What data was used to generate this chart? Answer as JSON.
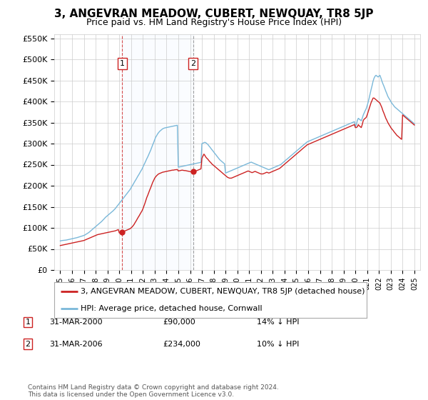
{
  "title": "3, ANGEVRAN MEADOW, CUBERT, NEWQUAY, TR8 5JP",
  "subtitle": "Price paid vs. HM Land Registry's House Price Index (HPI)",
  "legend_label_red": "3, ANGEVRAN MEADOW, CUBERT, NEWQUAY, TR8 5JP (detached house)",
  "legend_label_blue": "HPI: Average price, detached house, Cornwall",
  "transactions": [
    {
      "label": "1",
      "date": "31-MAR-2000",
      "price": "£90,000",
      "pct": "14% ↓ HPI",
      "year": 2000.25,
      "value": 90000
    },
    {
      "label": "2",
      "date": "31-MAR-2006",
      "price": "£234,000",
      "pct": "10% ↓ HPI",
      "year": 2006.25,
      "value": 234000
    }
  ],
  "footnote": "Contains HM Land Registry data © Crown copyright and database right 2024.\nThis data is licensed under the Open Government Licence v3.0.",
  "hpi_color": "#7ab8d9",
  "price_color": "#cc2222",
  "fill_color": "#ddeeff",
  "ylim": [
    0,
    560000
  ],
  "yticks": [
    0,
    50000,
    100000,
    150000,
    200000,
    250000,
    300000,
    350000,
    400000,
    450000,
    500000,
    550000
  ],
  "ytick_labels": [
    "£0",
    "£50K",
    "£100K",
    "£150K",
    "£200K",
    "£250K",
    "£300K",
    "£350K",
    "£400K",
    "£450K",
    "£500K",
    "£550K"
  ],
  "xlim": [
    1994.5,
    2025.5
  ],
  "hpi_x": [
    1995.0,
    1995.08,
    1995.17,
    1995.25,
    1995.33,
    1995.42,
    1995.5,
    1995.58,
    1995.67,
    1995.75,
    1995.83,
    1995.92,
    1996.0,
    1996.08,
    1996.17,
    1996.25,
    1996.33,
    1996.42,
    1996.5,
    1996.58,
    1996.67,
    1996.75,
    1996.83,
    1996.92,
    1997.0,
    1997.08,
    1997.17,
    1997.25,
    1997.33,
    1997.42,
    1997.5,
    1997.58,
    1997.67,
    1997.75,
    1997.83,
    1997.92,
    1998.0,
    1998.08,
    1998.17,
    1998.25,
    1998.33,
    1998.42,
    1998.5,
    1998.58,
    1998.67,
    1998.75,
    1998.83,
    1998.92,
    1999.0,
    1999.08,
    1999.17,
    1999.25,
    1999.33,
    1999.42,
    1999.5,
    1999.58,
    1999.67,
    1999.75,
    1999.83,
    1999.92,
    2000.0,
    2000.08,
    2000.17,
    2000.25,
    2000.33,
    2000.42,
    2000.5,
    2000.58,
    2000.67,
    2000.75,
    2000.83,
    2000.92,
    2001.0,
    2001.08,
    2001.17,
    2001.25,
    2001.33,
    2001.42,
    2001.5,
    2001.58,
    2001.67,
    2001.75,
    2001.83,
    2001.92,
    2002.0,
    2002.08,
    2002.17,
    2002.25,
    2002.33,
    2002.42,
    2002.5,
    2002.58,
    2002.67,
    2002.75,
    2002.83,
    2002.92,
    2003.0,
    2003.08,
    2003.17,
    2003.25,
    2003.33,
    2003.42,
    2003.5,
    2003.58,
    2003.67,
    2003.75,
    2003.83,
    2003.92,
    2004.0,
    2004.08,
    2004.17,
    2004.25,
    2004.33,
    2004.42,
    2004.5,
    2004.58,
    2004.67,
    2004.75,
    2004.83,
    2004.92,
    2005.0,
    2005.08,
    2005.17,
    2005.25,
    2005.33,
    2005.42,
    2005.5,
    2005.58,
    2005.67,
    2005.75,
    2005.83,
    2005.92,
    2006.0,
    2006.08,
    2006.17,
    2006.25,
    2006.33,
    2006.42,
    2006.5,
    2006.58,
    2006.67,
    2006.75,
    2006.83,
    2006.92,
    2007.0,
    2007.08,
    2007.17,
    2007.25,
    2007.33,
    2007.42,
    2007.5,
    2007.58,
    2007.67,
    2007.75,
    2007.83,
    2007.92,
    2008.0,
    2008.08,
    2008.17,
    2008.25,
    2008.33,
    2008.42,
    2008.5,
    2008.58,
    2008.67,
    2008.75,
    2008.83,
    2008.92,
    2009.0,
    2009.08,
    2009.17,
    2009.25,
    2009.33,
    2009.42,
    2009.5,
    2009.58,
    2009.67,
    2009.75,
    2009.83,
    2009.92,
    2010.0,
    2010.08,
    2010.17,
    2010.25,
    2010.33,
    2010.42,
    2010.5,
    2010.58,
    2010.67,
    2010.75,
    2010.83,
    2010.92,
    2011.0,
    2011.08,
    2011.17,
    2011.25,
    2011.33,
    2011.42,
    2011.5,
    2011.58,
    2011.67,
    2011.75,
    2011.83,
    2011.92,
    2012.0,
    2012.08,
    2012.17,
    2012.25,
    2012.33,
    2012.42,
    2012.5,
    2012.58,
    2012.67,
    2012.75,
    2012.83,
    2012.92,
    2013.0,
    2013.08,
    2013.17,
    2013.25,
    2013.33,
    2013.42,
    2013.5,
    2013.58,
    2013.67,
    2013.75,
    2013.83,
    2013.92,
    2014.0,
    2014.08,
    2014.17,
    2014.25,
    2014.33,
    2014.42,
    2014.5,
    2014.58,
    2014.67,
    2014.75,
    2014.83,
    2014.92,
    2015.0,
    2015.08,
    2015.17,
    2015.25,
    2015.33,
    2015.42,
    2015.5,
    2015.58,
    2015.67,
    2015.75,
    2015.83,
    2015.92,
    2016.0,
    2016.08,
    2016.17,
    2016.25,
    2016.33,
    2016.42,
    2016.5,
    2016.58,
    2016.67,
    2016.75,
    2016.83,
    2016.92,
    2017.0,
    2017.08,
    2017.17,
    2017.25,
    2017.33,
    2017.42,
    2017.5,
    2017.58,
    2017.67,
    2017.75,
    2017.83,
    2017.92,
    2018.0,
    2018.08,
    2018.17,
    2018.25,
    2018.33,
    2018.42,
    2018.5,
    2018.58,
    2018.67,
    2018.75,
    2018.83,
    2018.92,
    2019.0,
    2019.08,
    2019.17,
    2019.25,
    2019.33,
    2019.42,
    2019.5,
    2019.58,
    2019.67,
    2019.75,
    2019.83,
    2019.92,
    2020.0,
    2020.08,
    2020.17,
    2020.25,
    2020.33,
    2020.42,
    2020.5,
    2020.58,
    2020.67,
    2020.75,
    2020.83,
    2020.92,
    2021.0,
    2021.08,
    2021.17,
    2021.25,
    2021.33,
    2021.42,
    2021.5,
    2021.58,
    2021.67,
    2021.75,
    2021.83,
    2021.92,
    2022.0,
    2022.08,
    2022.17,
    2022.25,
    2022.33,
    2022.42,
    2022.5,
    2022.58,
    2022.67,
    2022.75,
    2022.83,
    2022.92,
    2023.0,
    2023.08,
    2023.17,
    2023.25,
    2023.33,
    2023.42,
    2023.5,
    2023.58,
    2023.67,
    2023.75,
    2023.83,
    2023.92,
    2024.0,
    2024.08,
    2024.17,
    2024.25,
    2024.33,
    2024.42,
    2024.5,
    2024.58,
    2024.67,
    2024.75,
    2024.83,
    2024.92,
    2025.0
  ],
  "hpi_y": [
    69000,
    69500,
    70000,
    70200,
    70500,
    70800,
    71000,
    71500,
    72000,
    72500,
    73000,
    73500,
    74000,
    74500,
    75000,
    75500,
    76000,
    76800,
    77500,
    78200,
    79000,
    79800,
    80500,
    81000,
    82000,
    83000,
    84500,
    86000,
    87500,
    89000,
    91000,
    93000,
    95000,
    97000,
    99000,
    101000,
    103000,
    105000,
    107000,
    109000,
    111000,
    113000,
    115000,
    117500,
    120000,
    122500,
    125000,
    127000,
    129000,
    131000,
    133000,
    135000,
    137000,
    139000,
    141000,
    143500,
    146000,
    149000,
    152000,
    155000,
    158000,
    161000,
    164000,
    167000,
    170000,
    173000,
    176000,
    179000,
    182000,
    185000,
    188000,
    191000,
    195000,
    199000,
    203000,
    207000,
    211000,
    215000,
    219000,
    223000,
    227000,
    231000,
    235000,
    239000,
    244000,
    249000,
    254000,
    259000,
    264000,
    269000,
    274000,
    279000,
    285000,
    291000,
    297000,
    303000,
    309000,
    315000,
    319000,
    323000,
    326000,
    329000,
    331000,
    333000,
    335000,
    336000,
    337000,
    337500,
    338000,
    338500,
    339000,
    339500,
    340000,
    340500,
    341000,
    341500,
    342000,
    342500,
    343000,
    343500,
    244000,
    244500,
    245000,
    245500,
    246000,
    246500,
    247000,
    247500,
    248000,
    248500,
    249000,
    249500,
    250000,
    250500,
    251000,
    251500,
    252000,
    252500,
    253000,
    253500,
    254000,
    254500,
    255000,
    255500,
    300000,
    301000,
    302000,
    303000,
    302000,
    300000,
    298000,
    295000,
    292000,
    289000,
    286000,
    283000,
    280000,
    277000,
    274000,
    271000,
    268000,
    265000,
    262000,
    260000,
    258000,
    256000,
    254000,
    252000,
    230000,
    231000,
    232000,
    233000,
    234000,
    235000,
    236000,
    237000,
    238000,
    239000,
    240000,
    241000,
    242000,
    243000,
    244000,
    245000,
    246000,
    247000,
    248000,
    249000,
    250000,
    251000,
    252000,
    253000,
    254000,
    255000,
    256000,
    255000,
    254000,
    253000,
    252000,
    251000,
    250000,
    249000,
    248000,
    247000,
    246000,
    245000,
    244000,
    243000,
    242000,
    241000,
    240000,
    239000,
    238000,
    239000,
    240000,
    241000,
    242000,
    243000,
    244000,
    245000,
    246000,
    247000,
    248000,
    249000,
    250000,
    252000,
    254000,
    256000,
    258000,
    260000,
    262000,
    264000,
    266000,
    268000,
    270000,
    272000,
    274000,
    276000,
    278000,
    280000,
    282000,
    284000,
    286000,
    288000,
    290000,
    292000,
    294000,
    296000,
    298000,
    300000,
    302000,
    304000,
    305000,
    306000,
    307000,
    308000,
    309000,
    310000,
    311000,
    312000,
    313000,
    314000,
    315000,
    316000,
    317000,
    318000,
    319000,
    320000,
    321000,
    322000,
    323000,
    324000,
    325000,
    326000,
    327000,
    328000,
    329000,
    330000,
    331000,
    332000,
    333000,
    334000,
    335000,
    336000,
    337000,
    338000,
    339000,
    340000,
    341000,
    342000,
    343000,
    344000,
    345000,
    346000,
    347000,
    348000,
    349000,
    350000,
    351000,
    352000,
    340000,
    345000,
    355000,
    360000,
    358000,
    356000,
    354000,
    360000,
    368000,
    373000,
    378000,
    383000,
    390000,
    398000,
    408000,
    418000,
    428000,
    438000,
    448000,
    455000,
    460000,
    462000,
    460000,
    458000,
    460000,
    462000,
    455000,
    448000,
    442000,
    436000,
    430000,
    424000,
    418000,
    412000,
    408000,
    404000,
    400000,
    396000,
    393000,
    390000,
    387000,
    385000,
    383000,
    381000,
    379000,
    377000,
    375000,
    373000,
    371000,
    369000,
    367000,
    365000,
    363000,
    361000,
    359000,
    357000,
    355000,
    353000,
    351000,
    349000,
    347000
  ],
  "price_x": [
    1995.0,
    1995.08,
    1995.17,
    1995.25,
    1995.33,
    1995.42,
    1995.5,
    1995.58,
    1995.67,
    1995.75,
    1995.83,
    1995.92,
    1996.0,
    1996.08,
    1996.17,
    1996.25,
    1996.33,
    1996.42,
    1996.5,
    1996.58,
    1996.67,
    1996.75,
    1996.83,
    1996.92,
    1997.0,
    1997.08,
    1997.17,
    1997.25,
    1997.33,
    1997.42,
    1997.5,
    1997.58,
    1997.67,
    1997.75,
    1997.83,
    1997.92,
    1998.0,
    1998.08,
    1998.17,
    1998.25,
    1998.33,
    1998.42,
    1998.5,
    1998.58,
    1998.67,
    1998.75,
    1998.83,
    1998.92,
    1999.0,
    1999.08,
    1999.17,
    1999.25,
    1999.33,
    1999.42,
    1999.5,
    1999.58,
    1999.67,
    1999.75,
    1999.83,
    1999.92,
    2000.0,
    2000.08,
    2000.17,
    2000.25,
    2000.33,
    2000.42,
    2000.5,
    2000.58,
    2000.67,
    2000.75,
    2000.83,
    2000.92,
    2001.0,
    2001.08,
    2001.17,
    2001.25,
    2001.33,
    2001.42,
    2001.5,
    2001.58,
    2001.67,
    2001.75,
    2001.83,
    2001.92,
    2002.0,
    2002.08,
    2002.17,
    2002.25,
    2002.33,
    2002.42,
    2002.5,
    2002.58,
    2002.67,
    2002.75,
    2002.83,
    2002.92,
    2003.0,
    2003.08,
    2003.17,
    2003.25,
    2003.33,
    2003.42,
    2003.5,
    2003.58,
    2003.67,
    2003.75,
    2003.83,
    2003.92,
    2004.0,
    2004.08,
    2004.17,
    2004.25,
    2004.33,
    2004.42,
    2004.5,
    2004.58,
    2004.67,
    2004.75,
    2004.83,
    2004.92,
    2005.0,
    2005.08,
    2005.17,
    2005.25,
    2005.33,
    2005.42,
    2005.5,
    2005.58,
    2005.67,
    2005.75,
    2005.83,
    2005.92,
    2006.0,
    2006.08,
    2006.17,
    2006.25,
    2006.33,
    2006.42,
    2006.5,
    2006.58,
    2006.67,
    2006.75,
    2006.83,
    2006.92,
    2007.0,
    2007.08,
    2007.17,
    2007.25,
    2007.33,
    2007.42,
    2007.5,
    2007.58,
    2007.67,
    2007.75,
    2007.83,
    2007.92,
    2008.0,
    2008.08,
    2008.17,
    2008.25,
    2008.33,
    2008.42,
    2008.5,
    2008.58,
    2008.67,
    2008.75,
    2008.83,
    2008.92,
    2009.0,
    2009.08,
    2009.17,
    2009.25,
    2009.33,
    2009.42,
    2009.5,
    2009.58,
    2009.67,
    2009.75,
    2009.83,
    2009.92,
    2010.0,
    2010.08,
    2010.17,
    2010.25,
    2010.33,
    2010.42,
    2010.5,
    2010.58,
    2010.67,
    2010.75,
    2010.83,
    2010.92,
    2011.0,
    2011.08,
    2011.17,
    2011.25,
    2011.33,
    2011.42,
    2011.5,
    2011.58,
    2011.67,
    2011.75,
    2011.83,
    2011.92,
    2012.0,
    2012.08,
    2012.17,
    2012.25,
    2012.33,
    2012.42,
    2012.5,
    2012.58,
    2012.67,
    2012.75,
    2012.83,
    2012.92,
    2013.0,
    2013.08,
    2013.17,
    2013.25,
    2013.33,
    2013.42,
    2013.5,
    2013.58,
    2013.67,
    2013.75,
    2013.83,
    2013.92,
    2014.0,
    2014.08,
    2014.17,
    2014.25,
    2014.33,
    2014.42,
    2014.5,
    2014.58,
    2014.67,
    2014.75,
    2014.83,
    2014.92,
    2015.0,
    2015.08,
    2015.17,
    2015.25,
    2015.33,
    2015.42,
    2015.5,
    2015.58,
    2015.67,
    2015.75,
    2015.83,
    2015.92,
    2016.0,
    2016.08,
    2016.17,
    2016.25,
    2016.33,
    2016.42,
    2016.5,
    2016.58,
    2016.67,
    2016.75,
    2016.83,
    2016.92,
    2017.0,
    2017.08,
    2017.17,
    2017.25,
    2017.33,
    2017.42,
    2017.5,
    2017.58,
    2017.67,
    2017.75,
    2017.83,
    2017.92,
    2018.0,
    2018.08,
    2018.17,
    2018.25,
    2018.33,
    2018.42,
    2018.5,
    2018.58,
    2018.67,
    2018.75,
    2018.83,
    2018.92,
    2019.0,
    2019.08,
    2019.17,
    2019.25,
    2019.33,
    2019.42,
    2019.5,
    2019.58,
    2019.67,
    2019.75,
    2019.83,
    2019.92,
    2020.0,
    2020.08,
    2020.17,
    2020.25,
    2020.33,
    2020.42,
    2020.5,
    2020.58,
    2020.67,
    2020.75,
    2020.83,
    2020.92,
    2021.0,
    2021.08,
    2021.17,
    2021.25,
    2021.33,
    2021.42,
    2021.5,
    2021.58,
    2021.67,
    2021.75,
    2021.83,
    2021.92,
    2022.0,
    2022.08,
    2022.17,
    2022.25,
    2022.33,
    2022.42,
    2022.5,
    2022.58,
    2022.67,
    2022.75,
    2022.83,
    2022.92,
    2023.0,
    2023.08,
    2023.17,
    2023.25,
    2023.33,
    2023.42,
    2023.5,
    2023.58,
    2023.67,
    2023.75,
    2023.83,
    2023.92,
    2024.0,
    2024.08,
    2024.17,
    2024.25,
    2024.33,
    2024.42,
    2024.5,
    2024.58,
    2024.67,
    2024.75,
    2024.83,
    2024.92,
    2025.0
  ],
  "price_y": [
    58000,
    58500,
    59000,
    59500,
    60000,
    60500,
    61000,
    61500,
    62000,
    62500,
    63000,
    63500,
    64000,
    64500,
    65000,
    65500,
    66000,
    66500,
    67000,
    67500,
    68000,
    68500,
    69000,
    69500,
    70000,
    71000,
    72000,
    73000,
    74000,
    75000,
    76000,
    77000,
    78000,
    79000,
    80000,
    81000,
    82000,
    83000,
    84000,
    84500,
    85000,
    85500,
    86000,
    86500,
    87000,
    87500,
    88000,
    88500,
    89000,
    89500,
    90000,
    90500,
    91000,
    91500,
    92000,
    92500,
    93000,
    94000,
    95000,
    96000,
    88000,
    88500,
    89000,
    90000,
    91000,
    92000,
    93000,
    94000,
    95000,
    96000,
    97000,
    98000,
    100000,
    102000,
    105000,
    108000,
    112000,
    116000,
    120000,
    124000,
    128000,
    132000,
    136000,
    140000,
    145000,
    151000,
    158000,
    165000,
    172000,
    178000,
    184000,
    190000,
    196000,
    202000,
    208000,
    213000,
    218000,
    221000,
    224000,
    226000,
    228000,
    229000,
    230000,
    231000,
    232000,
    232500,
    233000,
    233500,
    234000,
    234500,
    235000,
    235500,
    236000,
    236500,
    237000,
    237000,
    237500,
    238000,
    238000,
    238500,
    235000,
    235500,
    236000,
    236500,
    237000,
    236500,
    236000,
    236000,
    235500,
    235000,
    234500,
    234000,
    233500,
    233000,
    233500,
    234000,
    234000,
    234000,
    235000,
    236000,
    237000,
    238000,
    239000,
    240000,
    265000,
    270000,
    275000,
    272000,
    268000,
    265000,
    263000,
    260000,
    257000,
    255000,
    252000,
    250000,
    248000,
    246000,
    244000,
    242000,
    240000,
    238000,
    236000,
    234000,
    232000,
    230000,
    228000,
    226000,
    224000,
    222000,
    220000,
    219000,
    218000,
    218000,
    218000,
    219000,
    220000,
    221000,
    222000,
    223000,
    224000,
    225000,
    226000,
    227000,
    228000,
    229000,
    230000,
    231000,
    232000,
    233000,
    234000,
    235000,
    234000,
    233000,
    232000,
    231000,
    232000,
    233000,
    234000,
    233000,
    232000,
    231000,
    230000,
    229000,
    228000,
    228000,
    228000,
    229000,
    230000,
    231000,
    232000,
    231000,
    230000,
    231000,
    232000,
    233000,
    234000,
    235000,
    236000,
    237000,
    238000,
    239000,
    240000,
    241000,
    243000,
    245000,
    247000,
    249000,
    251000,
    253000,
    255000,
    257000,
    259000,
    261000,
    263000,
    265000,
    267000,
    269000,
    271000,
    273000,
    275000,
    277000,
    279000,
    281000,
    283000,
    285000,
    287000,
    289000,
    291000,
    293000,
    295000,
    297000,
    298000,
    299000,
    300000,
    301000,
    302000,
    303000,
    304000,
    305000,
    306000,
    307000,
    308000,
    309000,
    310000,
    311000,
    312000,
    313000,
    314000,
    315000,
    316000,
    317000,
    318000,
    319000,
    320000,
    321000,
    322000,
    323000,
    324000,
    325000,
    326000,
    327000,
    328000,
    329000,
    330000,
    331000,
    332000,
    333000,
    334000,
    335000,
    336000,
    337000,
    338000,
    339000,
    340000,
    341000,
    342000,
    343000,
    344000,
    345000,
    338000,
    338000,
    340000,
    345000,
    342000,
    340000,
    338000,
    345000,
    355000,
    358000,
    360000,
    362000,
    368000,
    375000,
    383000,
    390000,
    397000,
    403000,
    408000,
    408000,
    406000,
    404000,
    402000,
    400000,
    398000,
    396000,
    390000,
    385000,
    378000,
    372000,
    366000,
    360000,
    355000,
    350000,
    346000,
    342000,
    338000,
    335000,
    332000,
    329000,
    326000,
    323000,
    320000,
    318000,
    316000,
    314000,
    312000,
    310000,
    368000,
    366000,
    364000,
    362000,
    360000,
    358000,
    356000,
    354000,
    352000,
    350000,
    348000,
    346000,
    344000
  ]
}
